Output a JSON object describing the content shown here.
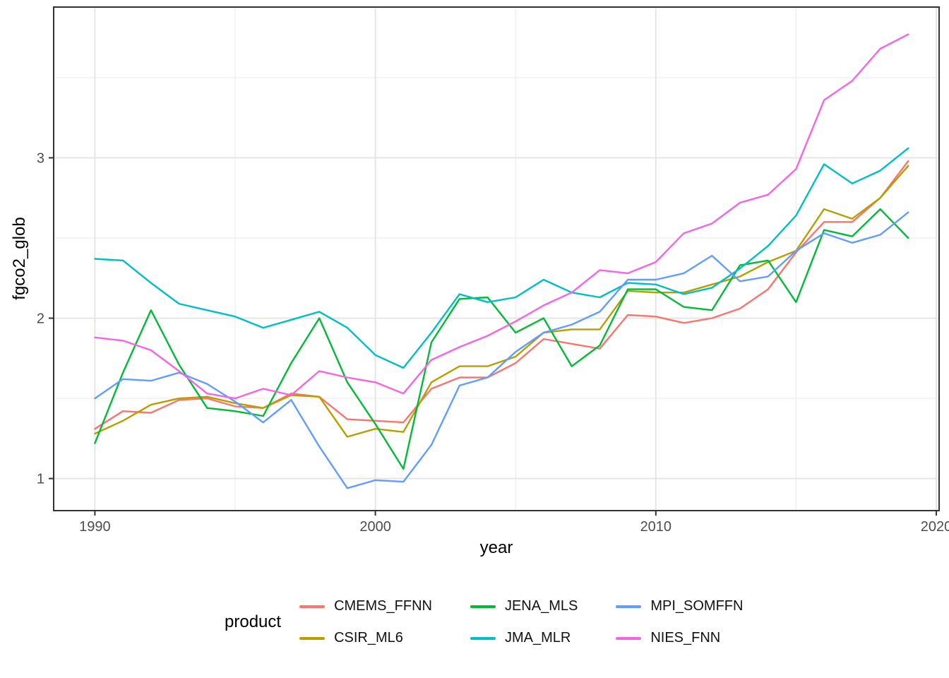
{
  "figure": {
    "background_color": "#FFFFFF",
    "panel_border_color": "#333333",
    "major_gridline_color": "#E4E4E4",
    "minor_gridline_color": "#EDEDED",
    "tick_mark_color": "#333333",
    "tick_label_color": "#4D4D4D"
  },
  "legend": {
    "title": "product",
    "entries": [
      {
        "label": "CMEMS_FFNN",
        "color": "#F8766D"
      },
      {
        "label": "CSIR_ML6",
        "color": "#B79F00"
      },
      {
        "label": "JENA_MLS",
        "color": "#00BA38"
      },
      {
        "label": "JMA_MLR",
        "color": "#00BFC4"
      },
      {
        "label": "MPI_SOMFFN",
        "color": "#619CFF"
      },
      {
        "label": "NIES_FNN",
        "color": "#F564E3"
      }
    ]
  },
  "chart_data": {
    "type": "line",
    "xlabel": "year",
    "ylabel": "fgco2_glob",
    "legend_title": "product",
    "legend_position": "bottom",
    "grid": true,
    "xlim": [
      1988.53,
      2020.1
    ],
    "ylim": [
      0.8,
      3.94
    ],
    "x_ticks": [
      1990,
      2000,
      2010,
      2020
    ],
    "x_minor_ticks": [
      1995,
      2005,
      2015
    ],
    "y_ticks": [
      1,
      2,
      3
    ],
    "y_minor_ticks": [
      1.5,
      2.5,
      3.5
    ],
    "x_tick_labels": [
      "1990",
      "2000",
      "2010",
      "2020"
    ],
    "y_tick_labels": [
      "1",
      "2",
      "3"
    ],
    "x": [
      1990,
      1991,
      1992,
      1993,
      1994,
      1995,
      1996,
      1997,
      1998,
      1999,
      2000,
      2001,
      2002,
      2003,
      2004,
      2005,
      2006,
      2007,
      2008,
      2009,
      2010,
      2011,
      2012,
      2013,
      2014,
      2015,
      2016,
      2017,
      2018,
      2019
    ],
    "series": [
      {
        "name": "CMEMS_FFNN",
        "color": "#F8766D",
        "values": [
          1.31,
          1.42,
          1.41,
          1.49,
          1.5,
          1.45,
          1.44,
          1.53,
          1.51,
          1.37,
          1.36,
          1.35,
          1.56,
          1.63,
          1.63,
          1.72,
          1.87,
          1.84,
          1.81,
          2.02,
          2.01,
          1.97,
          2.0,
          2.06,
          2.18,
          2.41,
          2.6,
          2.6,
          2.75,
          2.98
        ]
      },
      {
        "name": "CSIR_ML6",
        "color": "#B79F00",
        "values": [
          1.28,
          1.36,
          1.46,
          1.5,
          1.51,
          1.47,
          1.44,
          1.52,
          1.51,
          1.26,
          1.31,
          1.29,
          1.6,
          1.7,
          1.7,
          1.76,
          1.91,
          1.93,
          1.93,
          2.17,
          2.16,
          2.16,
          2.21,
          2.26,
          2.35,
          2.42,
          2.68,
          2.62,
          2.75,
          2.95
        ]
      },
      {
        "name": "JENA_MLS",
        "color": "#00BA38",
        "values": [
          1.22,
          1.66,
          2.05,
          1.71,
          1.44,
          1.42,
          1.39,
          1.72,
          2.0,
          1.6,
          1.34,
          1.06,
          1.85,
          2.12,
          2.13,
          1.91,
          2.0,
          1.7,
          1.83,
          2.18,
          2.18,
          2.07,
          2.05,
          2.33,
          2.36,
          2.1,
          2.55,
          2.51,
          2.68,
          2.5
        ]
      },
      {
        "name": "JMA_MLR",
        "color": "#00BFC4",
        "values": [
          2.37,
          2.36,
          2.22,
          2.09,
          2.05,
          2.01,
          1.94,
          1.99,
          2.04,
          1.94,
          1.77,
          1.69,
          1.91,
          2.15,
          2.1,
          2.13,
          2.24,
          2.16,
          2.13,
          2.22,
          2.21,
          2.15,
          2.19,
          2.31,
          2.45,
          2.64,
          2.96,
          2.84,
          2.92,
          3.06
        ]
      },
      {
        "name": "MPI_SOMFFN",
        "color": "#619CFF",
        "values": [
          1.5,
          1.62,
          1.61,
          1.66,
          1.59,
          1.48,
          1.35,
          1.49,
          1.2,
          0.94,
          0.99,
          0.98,
          1.21,
          1.58,
          1.63,
          1.79,
          1.91,
          1.96,
          2.04,
          2.24,
          2.24,
          2.28,
          2.39,
          2.23,
          2.26,
          2.42,
          2.53,
          2.47,
          2.52,
          2.66
        ]
      },
      {
        "name": "NIES_FNN",
        "color": "#F564E3",
        "values": [
          1.88,
          1.86,
          1.8,
          1.67,
          1.53,
          1.5,
          1.56,
          1.52,
          1.67,
          1.63,
          1.6,
          1.53,
          1.74,
          1.82,
          1.89,
          1.98,
          2.08,
          2.16,
          2.3,
          2.28,
          2.35,
          2.53,
          2.59,
          2.72,
          2.77,
          2.93,
          3.36,
          3.48,
          3.68,
          3.77
        ]
      }
    ]
  }
}
